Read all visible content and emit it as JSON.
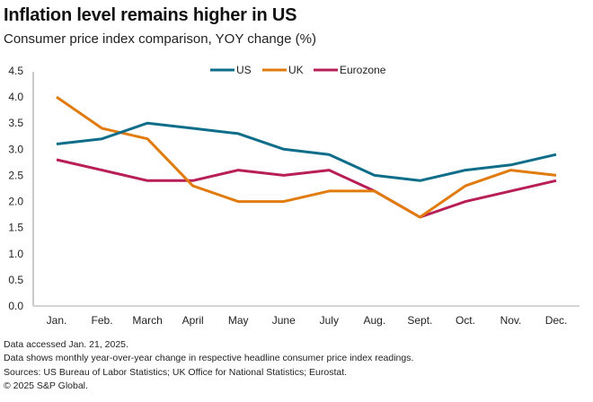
{
  "header": {
    "title": "Inflation level remains higher in US",
    "subtitle": "Consumer price index comparison, YOY change (%)"
  },
  "footer": {
    "lines": [
      "Data accessed Jan. 21, 2025.",
      "Data shows monthly year-over-year change in respective headline consumer price index readings.",
      "Sources: US Bureau of Labor Statistics; UK Office for National Statistics; Eurostat.",
      "© 2025 S&P Global."
    ]
  },
  "chart_data": {
    "type": "line",
    "title": "Inflation level remains higher in US",
    "subtitle": "Consumer price index comparison, YOY change (%)",
    "xlabel": "",
    "ylabel": "",
    "categories": [
      "Jan.",
      "Feb.",
      "March",
      "April",
      "May",
      "June",
      "July",
      "Aug.",
      "Sept.",
      "Oct.",
      "Nov.",
      "Dec."
    ],
    "ylim": [
      0,
      4.5
    ],
    "yticks": [
      "0.0",
      "0.5",
      "1.0",
      "1.5",
      "2.0",
      "2.5",
      "3.0",
      "3.5",
      "4.0",
      "4.5"
    ],
    "ytick_values": [
      0,
      0.5,
      1.0,
      1.5,
      2.0,
      2.5,
      3.0,
      3.5,
      4.0,
      4.5
    ],
    "grid": false,
    "legend_position": "top-center",
    "series": [
      {
        "name": "US",
        "color": "#0e6e8a",
        "values": [
          3.1,
          3.2,
          3.5,
          3.4,
          3.3,
          3.0,
          2.9,
          2.5,
          2.4,
          2.6,
          2.7,
          2.9
        ]
      },
      {
        "name": "UK",
        "color": "#e07b0c",
        "values": [
          4.0,
          3.4,
          3.2,
          2.3,
          2.0,
          2.0,
          2.2,
          2.2,
          1.7,
          2.3,
          2.6,
          2.5
        ]
      },
      {
        "name": "Eurozone",
        "color": "#b81f56",
        "values": [
          2.8,
          2.6,
          2.4,
          2.4,
          2.6,
          2.5,
          2.6,
          2.2,
          1.7,
          2.0,
          2.2,
          2.4
        ]
      }
    ]
  }
}
